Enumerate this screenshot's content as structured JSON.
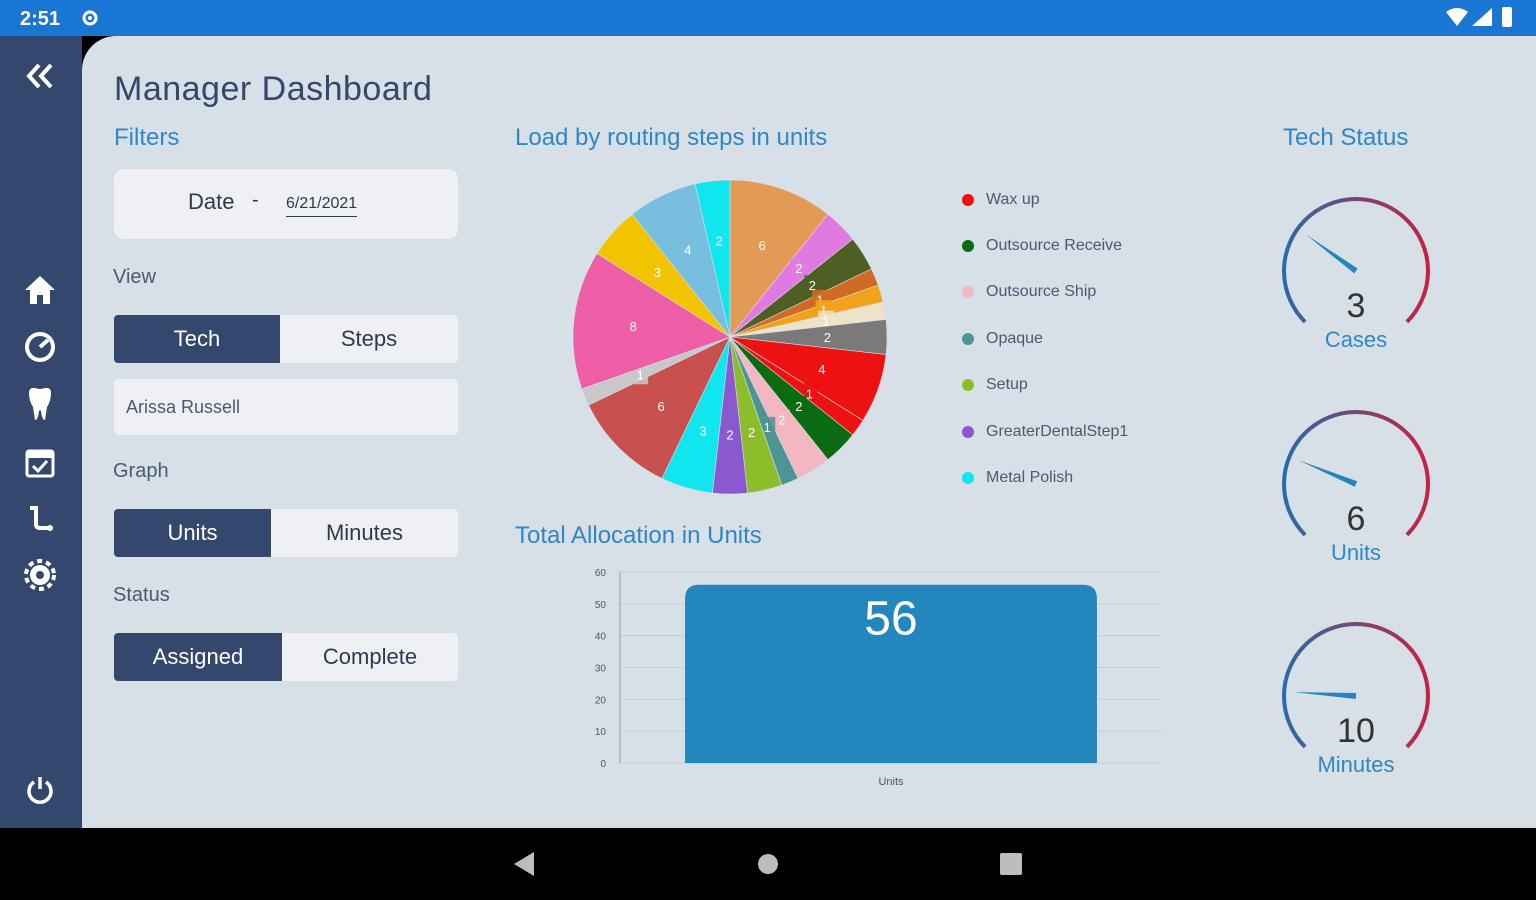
{
  "statusbar": {
    "time": "2:51"
  },
  "header": {
    "title": "Manager Dashboard"
  },
  "filters": {
    "title": "Filters",
    "date_label": "Date",
    "date_separator": "-",
    "date_value": "6/21/2021",
    "view_label": "View",
    "view_options": [
      "Tech",
      "Steps"
    ],
    "tech_name": "Arissa Russell",
    "graph_label": "Graph",
    "graph_options": [
      "Units",
      "Minutes"
    ],
    "status_label": "Status",
    "status_options": [
      "Assigned",
      "Complete"
    ]
  },
  "pie_section": {
    "title": "Load by routing steps in units",
    "legend": [
      {
        "label": "Wax up",
        "color": "#ee1111"
      },
      {
        "label": "Outsource Receive",
        "color": "#0b6b13"
      },
      {
        "label": "Outsource Ship",
        "color": "#f2b7c0"
      },
      {
        "label": "Opaque",
        "color": "#4d9595"
      },
      {
        "label": "Setup",
        "color": "#8ebd2c"
      },
      {
        "label": "GreaterDentalStep1",
        "color": "#8a59cf"
      },
      {
        "label": "Metal Polish",
        "color": "#11e6ee"
      }
    ]
  },
  "bar_section": {
    "title": "Total Allocation in Units"
  },
  "tech_status": {
    "title": "Tech Status",
    "gauges": [
      {
        "value": "3",
        "caption": "Cases",
        "fraction": 0.3
      },
      {
        "value": "6",
        "caption": "Units",
        "fraction": 0.25
      },
      {
        "value": "10",
        "caption": "Minutes",
        "fraction": 0.18
      }
    ]
  },
  "chart_data": [
    {
      "type": "pie",
      "title": "Load by routing steps in units",
      "slices": [
        {
          "value": 6,
          "label": "6",
          "color": "#e39a56"
        },
        {
          "value": 2,
          "label": "2",
          "color": "#e07ae0"
        },
        {
          "value": 2,
          "label": "2",
          "color": "#4e5f25"
        },
        {
          "value": 1,
          "label": "1",
          "color": "#d16a22"
        },
        {
          "value": 1,
          "label": "1",
          "color": "#f0a21b"
        },
        {
          "value": 1,
          "label": "1",
          "color": "#ede3c8"
        },
        {
          "value": 2,
          "label": "2",
          "color": "#7a7a7a"
        },
        {
          "value": 4,
          "label": "4",
          "color": "#ee1111"
        },
        {
          "value": 1,
          "label": "1",
          "color": "#ee1111"
        },
        {
          "value": 2,
          "label": "2",
          "color": "#0b6b13"
        },
        {
          "value": 2,
          "label": "2",
          "color": "#f2b7c0"
        },
        {
          "value": 1,
          "label": "1",
          "color": "#4d9595"
        },
        {
          "value": 2,
          "label": "2",
          "color": "#8ebd2c"
        },
        {
          "value": 2,
          "label": "2",
          "color": "#8a59cf"
        },
        {
          "value": 3,
          "label": "3",
          "color": "#11e6ee"
        },
        {
          "value": 6,
          "label": "6",
          "color": "#c8504f"
        },
        {
          "value": 1,
          "label": "1",
          "color": "#c8c8c8"
        },
        {
          "value": 8,
          "label": "8",
          "color": "#ee5ea6"
        },
        {
          "value": 3,
          "label": "3",
          "color": "#f2c400"
        },
        {
          "value": 4,
          "label": "4",
          "color": "#78bedf"
        },
        {
          "value": 2,
          "label": "2",
          "color": "#11e6ee"
        }
      ]
    },
    {
      "type": "bar",
      "title": "Total Allocation in Units",
      "categories": [
        "Units"
      ],
      "values": [
        56
      ],
      "value_labels": [
        "56"
      ],
      "ylim": [
        0,
        60
      ],
      "yticks": [
        "0",
        "10",
        "20",
        "30",
        "40",
        "50",
        "60"
      ],
      "grid": true,
      "color": "#2386bd"
    }
  ]
}
